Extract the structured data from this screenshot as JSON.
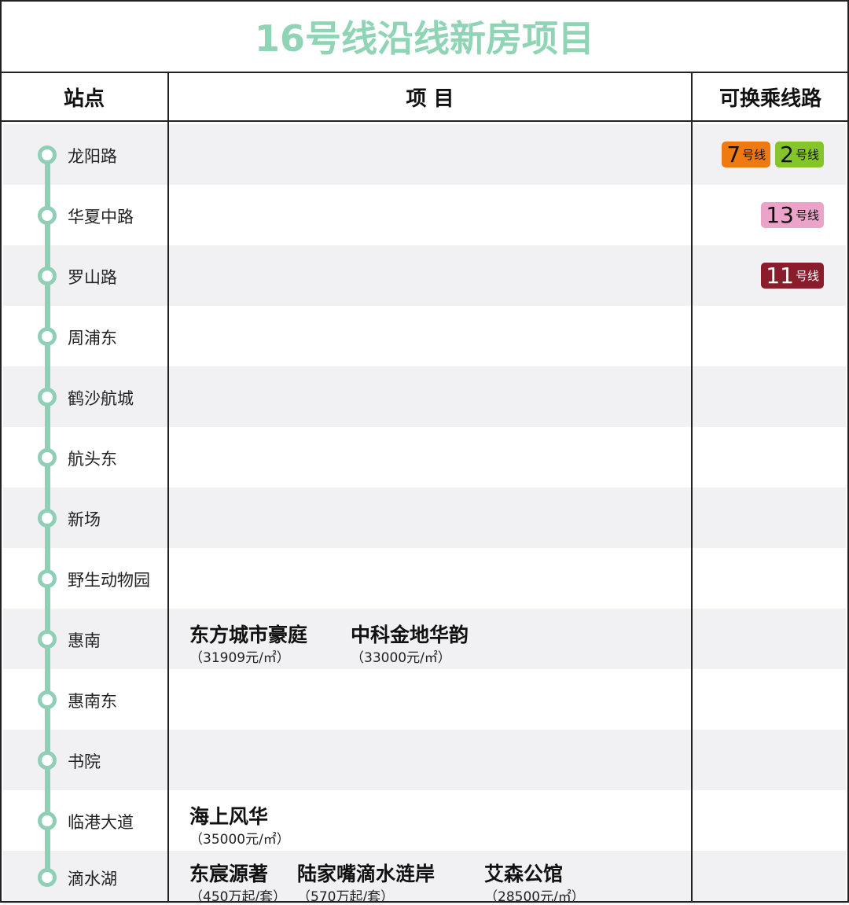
{
  "title": "16号线沿线新房项目",
  "headers": {
    "station": "站点",
    "project": "项 目",
    "transfer": "可换乘线路"
  },
  "line_color": "#8ecfb5",
  "stations": [
    {
      "name": "龙阳路",
      "transfers": [
        {
          "num": "7",
          "label": "号线",
          "color": "#f07a12",
          "text": "#111"
        },
        {
          "num": "2",
          "label": "号线",
          "color": "#84c52a",
          "text": "#111"
        }
      ],
      "projects": []
    },
    {
      "name": "华夏中路",
      "transfers": [
        {
          "num": "13",
          "label": "号线",
          "color": "#eba3c9",
          "text": "#111"
        }
      ],
      "projects": []
    },
    {
      "name": "罗山路",
      "transfers": [
        {
          "num": "11",
          "label": "号线",
          "color": "#8a1c2c",
          "text": "#fff"
        }
      ],
      "projects": []
    },
    {
      "name": "周浦东",
      "transfers": [],
      "projects": []
    },
    {
      "name": "鹤沙航城",
      "transfers": [],
      "projects": []
    },
    {
      "name": "航头东",
      "transfers": [],
      "projects": []
    },
    {
      "name": "新场",
      "transfers": [],
      "projects": []
    },
    {
      "name": "野生动物园",
      "transfers": [],
      "projects": []
    },
    {
      "name": "惠南",
      "transfers": [],
      "projects": [
        {
          "name": "东方城市豪庭",
          "price": "（31909元/㎡）"
        },
        {
          "name": "中科金地华韵",
          "price": "（33000元/㎡）"
        }
      ]
    },
    {
      "name": "惠南东",
      "transfers": [],
      "projects": []
    },
    {
      "name": "书院",
      "transfers": [],
      "projects": []
    },
    {
      "name": "临港大道",
      "transfers": [],
      "projects": [
        {
          "name": "海上风华",
          "price": "（35000元/㎡）"
        }
      ]
    },
    {
      "name": "滴水湖",
      "transfers": [],
      "projects": [
        {
          "name": "东宸源著",
          "price": "（450万起/套）"
        },
        {
          "name": "陆家嘴滴水涟岸",
          "price": "（570万起/套）"
        },
        {
          "name": "艾森公馆",
          "price": "（28500元/㎡）"
        }
      ]
    }
  ]
}
